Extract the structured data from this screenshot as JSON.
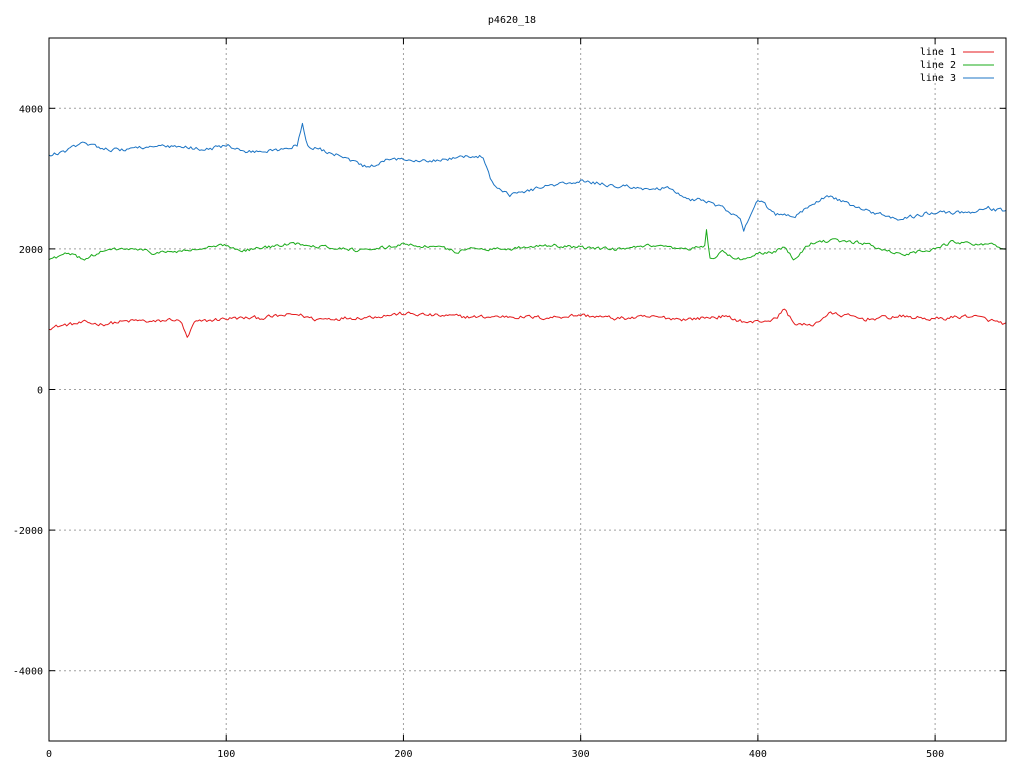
{
  "chart_data": {
    "type": "line",
    "title": "p4620_18",
    "xlabel": "",
    "ylabel": "",
    "xlim": [
      0,
      540
    ],
    "ylim": [
      -5000,
      5000
    ],
    "x_ticks": [
      0,
      100,
      200,
      300,
      400,
      500
    ],
    "y_ticks": [
      -4000,
      -2000,
      0,
      2000,
      4000
    ],
    "y_tick_labels": [
      "-4000",
      "-2000",
      "0",
      "2000",
      "4000"
    ],
    "x_tick_labels": [
      "0",
      "100",
      "200",
      "300",
      "400",
      "500"
    ],
    "grid": true,
    "legend_position": "top-right",
    "series": [
      {
        "name": "line 1",
        "color": "#e41a1c",
        "noise": 45,
        "anchors": [
          [
            0,
            880
          ],
          [
            10,
            920
          ],
          [
            20,
            950
          ],
          [
            30,
            930
          ],
          [
            40,
            960
          ],
          [
            50,
            980
          ],
          [
            60,
            960
          ],
          [
            70,
            1000
          ],
          [
            75,
            950
          ],
          [
            78,
            720
          ],
          [
            82,
            950
          ],
          [
            90,
            980
          ],
          [
            100,
            1010
          ],
          [
            120,
            1020
          ],
          [
            140,
            1070
          ],
          [
            150,
            1000
          ],
          [
            160,
            1010
          ],
          [
            180,
            1030
          ],
          [
            200,
            1080
          ],
          [
            220,
            1050
          ],
          [
            240,
            1030
          ],
          [
            260,
            1040
          ],
          [
            280,
            1020
          ],
          [
            300,
            1060
          ],
          [
            320,
            1010
          ],
          [
            340,
            1030
          ],
          [
            360,
            1000
          ],
          [
            380,
            1040
          ],
          [
            395,
            950
          ],
          [
            410,
            1000
          ],
          [
            415,
            1150
          ],
          [
            420,
            950
          ],
          [
            430,
            900
          ],
          [
            440,
            1080
          ],
          [
            450,
            1050
          ],
          [
            460,
            1000
          ],
          [
            480,
            1040
          ],
          [
            500,
            1000
          ],
          [
            520,
            1050
          ],
          [
            540,
            930
          ]
        ]
      },
      {
        "name": "line 2",
        "color": "#1aab1a",
        "noise": 40,
        "anchors": [
          [
            0,
            1850
          ],
          [
            10,
            1930
          ],
          [
            20,
            1860
          ],
          [
            30,
            1960
          ],
          [
            40,
            2000
          ],
          [
            50,
            1990
          ],
          [
            60,
            1940
          ],
          [
            80,
            1980
          ],
          [
            100,
            2050
          ],
          [
            110,
            1980
          ],
          [
            140,
            2080
          ],
          [
            160,
            2020
          ],
          [
            180,
            1970
          ],
          [
            200,
            2070
          ],
          [
            220,
            2020
          ],
          [
            230,
            1960
          ],
          [
            240,
            2010
          ],
          [
            260,
            2000
          ],
          [
            280,
            2060
          ],
          [
            300,
            2020
          ],
          [
            320,
            1990
          ],
          [
            340,
            2040
          ],
          [
            360,
            1980
          ],
          [
            370,
            2050
          ],
          [
            371,
            2280
          ],
          [
            373,
            1860
          ],
          [
            380,
            1950
          ],
          [
            390,
            1850
          ],
          [
            400,
            1940
          ],
          [
            410,
            1960
          ],
          [
            415,
            2040
          ],
          [
            420,
            1870
          ],
          [
            430,
            2080
          ],
          [
            440,
            2120
          ],
          [
            460,
            2080
          ],
          [
            480,
            1920
          ],
          [
            500,
            2000
          ],
          [
            510,
            2100
          ],
          [
            530,
            2070
          ],
          [
            540,
            1980
          ]
        ]
      },
      {
        "name": "line 3",
        "color": "#1c74c4",
        "noise": 45,
        "anchors": [
          [
            0,
            3320
          ],
          [
            10,
            3400
          ],
          [
            20,
            3510
          ],
          [
            30,
            3440
          ],
          [
            40,
            3400
          ],
          [
            50,
            3450
          ],
          [
            70,
            3450
          ],
          [
            90,
            3420
          ],
          [
            100,
            3480
          ],
          [
            110,
            3380
          ],
          [
            130,
            3400
          ],
          [
            140,
            3480
          ],
          [
            143,
            3790
          ],
          [
            146,
            3460
          ],
          [
            160,
            3360
          ],
          [
            180,
            3150
          ],
          [
            190,
            3250
          ],
          [
            200,
            3280
          ],
          [
            220,
            3260
          ],
          [
            240,
            3330
          ],
          [
            245,
            3310
          ],
          [
            250,
            2950
          ],
          [
            260,
            2770
          ],
          [
            280,
            2890
          ],
          [
            300,
            2960
          ],
          [
            320,
            2900
          ],
          [
            340,
            2850
          ],
          [
            350,
            2860
          ],
          [
            360,
            2700
          ],
          [
            370,
            2700
          ],
          [
            380,
            2580
          ],
          [
            390,
            2420
          ],
          [
            392,
            2260
          ],
          [
            400,
            2700
          ],
          [
            410,
            2500
          ],
          [
            420,
            2440
          ],
          [
            430,
            2650
          ],
          [
            440,
            2750
          ],
          [
            460,
            2550
          ],
          [
            480,
            2420
          ],
          [
            490,
            2480
          ],
          [
            500,
            2530
          ],
          [
            520,
            2520
          ],
          [
            530,
            2580
          ],
          [
            540,
            2530
          ]
        ]
      }
    ]
  }
}
